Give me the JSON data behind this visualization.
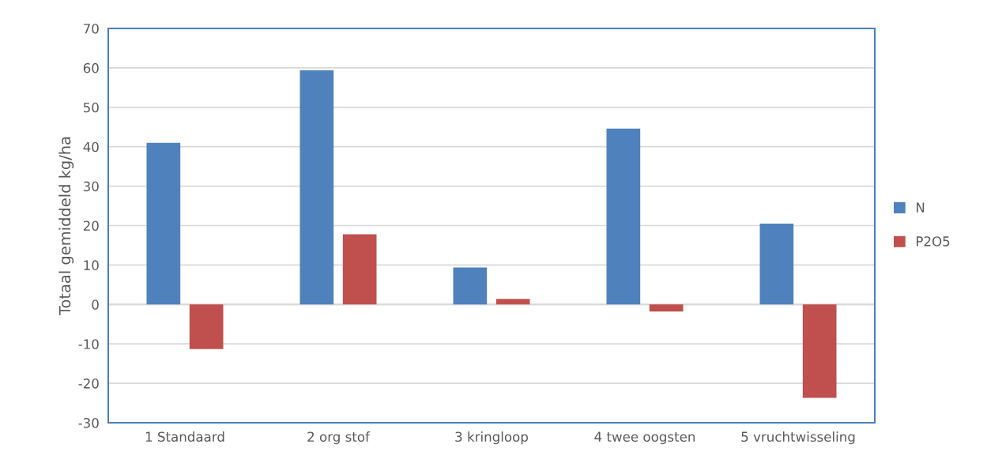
{
  "chart_data": {
    "type": "bar",
    "ylabel": "Totaal gemiddeld kg/ha",
    "categories": [
      "1 Standaard",
      "2 org stof",
      "3 kringloop",
      "4 twee oogsten",
      "5 vruchtwisseling"
    ],
    "series": [
      {
        "name": "N",
        "color": "#4f81bd",
        "values": [
          41.0,
          59.4,
          9.4,
          44.6,
          20.5
        ]
      },
      {
        "name": "P2O5",
        "color": "#c0504d",
        "values": [
          -11.3,
          17.8,
          1.4,
          -1.8,
          -23.7
        ]
      }
    ],
    "ylim": [
      -30,
      70
    ],
    "yticks": [
      -30,
      -20,
      -10,
      0,
      10,
      20,
      30,
      40,
      50,
      60,
      70
    ],
    "grid": "y",
    "legend": "right"
  }
}
